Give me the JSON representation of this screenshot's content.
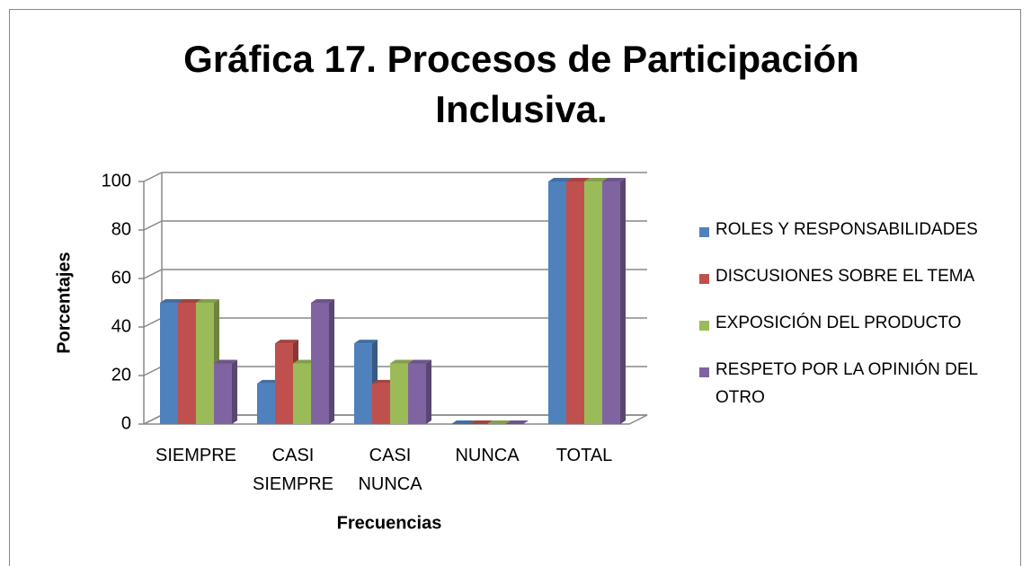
{
  "chart_data": {
    "type": "bar3d",
    "title": "Gráfica 17. Procesos de Participación Inclusiva.",
    "x_label": "Frecuencias",
    "y_label": "Porcentajes",
    "categories": [
      "SIEMPRE",
      "CASI SIEMPRE",
      "CASI NUNCA",
      "NUNCA",
      "TOTAL"
    ],
    "series": [
      {
        "name": "ROLES Y RESPONSABILIDADES",
        "color": "#4f81bd",
        "values": [
          50,
          16.7,
          33.3,
          0,
          100
        ]
      },
      {
        "name": "DISCUSIONES SOBRE EL TEMA",
        "color": "#c0504d",
        "values": [
          50,
          33.3,
          16.7,
          0,
          100
        ]
      },
      {
        "name": "EXPOSICIÓN DEL PRODUCTO",
        "color": "#9bbb59",
        "values": [
          50,
          25,
          25,
          0,
          100
        ]
      },
      {
        "name": "RESPETO POR LA OPINIÓN DEL OTRO",
        "color": "#8064a2",
        "values": [
          25,
          50,
          25,
          0,
          100
        ]
      }
    ],
    "ylim": [
      0,
      100
    ],
    "yticks": [
      0,
      20,
      40,
      60,
      80,
      100
    ],
    "grid": true,
    "legend": "right"
  }
}
